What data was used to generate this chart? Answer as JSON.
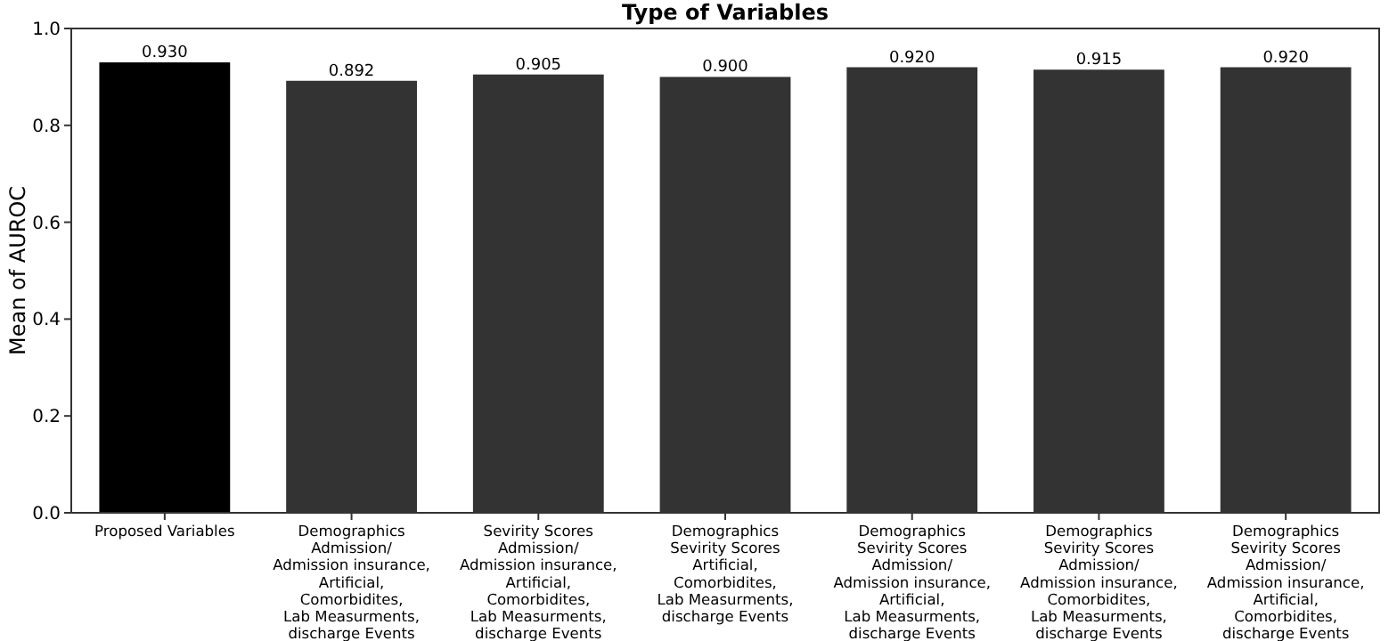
{
  "chart_data": {
    "type": "bar",
    "title": "Type of Variables",
    "ylabel": "Mean of AUROC",
    "categories": [
      "Proposed Variables",
      "Demographics\nAdmission/\nAdmission insurance,\nArtificial,\nComorbidites,\nLab Measurments,\ndischarge Events",
      "Sevirity Scores\nAdmission/\nAdmission insurance,\nArtificial,\nComorbidites,\nLab Measurments,\ndischarge Events",
      "Demographics\nSevirity Scores\nArtificial,\nComorbidites,\nLab Measurments,\ndischarge Events",
      "Demographics\nSevirity Scores\nAdmission/\nAdmission insurance,\nArtificial,\nLab Measurments,\ndischarge Events",
      "Demographics\nSevirity Scores\nAdmission/\nAdmission insurance,\nComorbidites,\nLab Measurments,\ndischarge Events",
      "Demographics\nSevirity Scores\nAdmission/\nAdmission insurance,\nArtificial,\nComorbidites,\ndischarge Events"
    ],
    "values": [
      0.93,
      0.892,
      0.905,
      0.9,
      0.92,
      0.915,
      0.92
    ],
    "value_labels": [
      "0.930",
      "0.892",
      "0.905",
      "0.900",
      "0.920",
      "0.915",
      "0.920"
    ],
    "colors": [
      "#000000",
      "#333333",
      "#333333",
      "#333333",
      "#333333",
      "#333333",
      "#333333"
    ],
    "ylim": [
      0,
      1
    ],
    "yticks": [
      {
        "value": 0,
        "label": "0.0"
      },
      {
        "value": 0.2,
        "label": "0.2"
      },
      {
        "value": 0.4,
        "label": "0.4"
      },
      {
        "value": 0.6,
        "label": "0.6"
      },
      {
        "value": 0.8,
        "label": "0.8"
      },
      {
        "value": 1,
        "label": "1.0"
      }
    ],
    "grid": false
  }
}
